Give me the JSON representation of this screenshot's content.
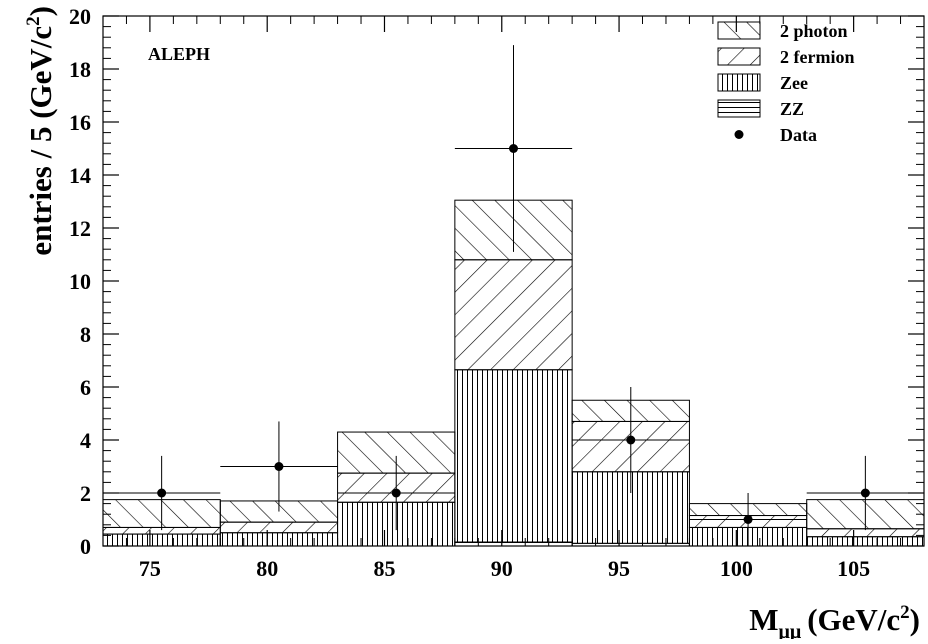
{
  "chart_data": {
    "type": "bar",
    "stacked": true,
    "experiment_label": "ALEPH",
    "xlabel": "M",
    "xlabel_subscript": "μμ",
    "xlabel_unit": "(GeV/c",
    "xlabel_unit_sup": "2",
    "xlabel_close": ")",
    "ylabel": "entries / 5 (GeV/c",
    "ylabel_sup": "2",
    "ylabel_close": ")",
    "xlim": [
      73,
      108
    ],
    "ylim": [
      0,
      20
    ],
    "x_ticks": [
      75,
      80,
      85,
      90,
      95,
      100,
      105
    ],
    "y_ticks": [
      0,
      2,
      4,
      6,
      8,
      10,
      12,
      14,
      16,
      18,
      20
    ],
    "bin_edges": [
      73,
      78,
      83,
      88,
      93,
      98,
      103,
      108
    ],
    "series": [
      {
        "name": "ZZ",
        "pattern": "horizontal",
        "values": [
          0.0,
          0.0,
          0.0,
          0.15,
          0.1,
          0.0,
          0.0
        ]
      },
      {
        "name": "Zee",
        "pattern": "vertical",
        "values": [
          0.45,
          0.5,
          1.65,
          6.5,
          2.7,
          0.7,
          0.35
        ]
      },
      {
        "name": "2 fermion",
        "pattern": "forward-diagonal",
        "values": [
          0.25,
          0.4,
          1.1,
          4.15,
          1.9,
          0.45,
          0.3
        ]
      },
      {
        "name": "2 photon",
        "pattern": "back-diagonal",
        "values": [
          1.05,
          0.8,
          1.55,
          2.25,
          0.8,
          0.45,
          1.1
        ]
      }
    ],
    "data_points": {
      "name": "Data",
      "x": [
        75.5,
        80.5,
        85.5,
        90.5,
        95.5,
        100.5,
        105.5
      ],
      "y": [
        2,
        3,
        2,
        15,
        4,
        1,
        2
      ],
      "yerr_low": [
        1.4,
        1.7,
        1.4,
        3.9,
        2.0,
        1.0,
        1.4
      ],
      "yerr_high": [
        1.4,
        1.7,
        1.4,
        3.9,
        2.0,
        1.0,
        1.4
      ]
    },
    "legend": [
      "2 photon",
      "2 fermion",
      "Zee",
      "ZZ",
      "Data"
    ],
    "legend_position": "top-right",
    "grid": false
  }
}
